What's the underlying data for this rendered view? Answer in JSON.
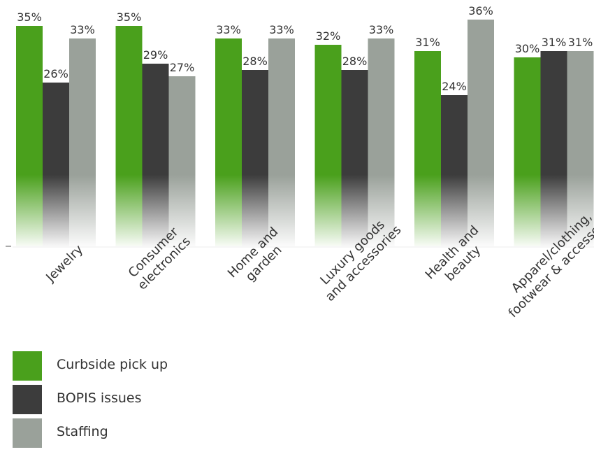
{
  "chart_data": {
    "type": "bar",
    "categories": [
      [
        "Jewelry"
      ],
      [
        "Consumer",
        "electronics"
      ],
      [
        "Home and",
        "garden"
      ],
      [
        "Luxury goods",
        "and accessories"
      ],
      [
        "Health and",
        "beauty"
      ],
      [
        "Apparel/clothing,",
        "footwear & accessories"
      ]
    ],
    "series": [
      {
        "name": "Curbside pick up",
        "color": "#4aa01c",
        "values": [
          35,
          35,
          33,
          32,
          31,
          30
        ]
      },
      {
        "name": "BOPIS issues",
        "color": "#3c3c3c",
        "values": [
          26,
          29,
          28,
          28,
          24,
          31
        ]
      },
      {
        "name": "Staffing",
        "color": "#9aa19a",
        "values": [
          33,
          27,
          33,
          33,
          36,
          31
        ]
      }
    ],
    "value_suffix": "%",
    "ylim": [
      0,
      36
    ],
    "grid": false,
    "legend_position": "bottom-left",
    "bar_fade_to_white": true
  }
}
